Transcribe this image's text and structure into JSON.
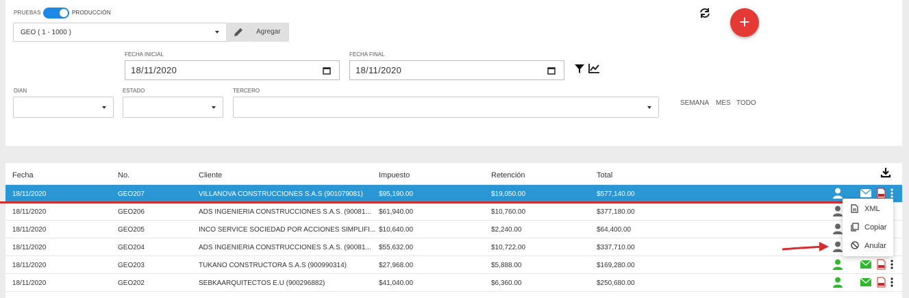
{
  "env": {
    "tests_label": "PRUEBAS",
    "prod_label": "PRODUCCIÓN"
  },
  "series_select": {
    "value": "GEO ( 1 - 1000 )"
  },
  "add_button": "Agregar",
  "fecha_inicial": {
    "label": "FECHA INICIAL",
    "value": "18/11/2020"
  },
  "fecha_final": {
    "label": "FECHA FINAL",
    "value": "18/11/2020"
  },
  "filters": {
    "dian": "DIAN",
    "estado": "ESTADO",
    "tercero": "TERCERO"
  },
  "ranges": {
    "semana": "SEMANA",
    "mes": "MES",
    "todo": "TODO"
  },
  "fab": "+",
  "table": {
    "headers": {
      "fecha": "Fecha",
      "no": "No.",
      "cliente": "Cliente",
      "impuesto": "Impuesto",
      "retencion": "Retención",
      "total": "Total"
    },
    "rows": [
      {
        "fecha": "18/11/2020",
        "no": "GEO207",
        "cliente": "VILLANOVA CONSTRUCCIONES S.A.S (901079081)",
        "impuesto": "$95,190.00",
        "retencion": "$19,050.00",
        "total": "$577,140.00"
      },
      {
        "fecha": "18/11/2020",
        "no": "GEO206",
        "cliente": "ADS INGENIERIA CONSTRUCCIONES S.A.S. (90081...",
        "impuesto": "$61,940.00",
        "retencion": "$10,760.00",
        "total": "$377,180.00"
      },
      {
        "fecha": "18/11/2020",
        "no": "GEO205",
        "cliente": "INCO SERVICE SOCIEDAD POR ACCIONES SIMPLIFI...",
        "impuesto": "$10,640.00",
        "retencion": "$2,240.00",
        "total": "$64,400.00"
      },
      {
        "fecha": "18/11/2020",
        "no": "GEO204",
        "cliente": "ADS INGENIERIA CONSTRUCCIONES S.A.S. (90081...",
        "impuesto": "$55,632.00",
        "retencion": "$10,722.00",
        "total": "$337,710.00"
      },
      {
        "fecha": "18/11/2020",
        "no": "GEO203",
        "cliente": "TUKANO CONSTRUCTORA S.A.S (900990314)",
        "impuesto": "$27,968.00",
        "retencion": "$5,888.00",
        "total": "$169,280.00"
      },
      {
        "fecha": "18/11/2020",
        "no": "GEO202",
        "cliente": "SEBKAARQUITECTOS E.U (900296882)",
        "impuesto": "$41,040.00",
        "retencion": "$6,360.00",
        "total": "$250,680.00"
      }
    ]
  },
  "context_menu": {
    "xml": "XML",
    "copiar": "Copiar",
    "anular": "Anular"
  },
  "colors": {
    "primary": "#2b96d4",
    "fab": "#e53935",
    "green": "#2eb82e",
    "annotation": "#d32f2f"
  }
}
